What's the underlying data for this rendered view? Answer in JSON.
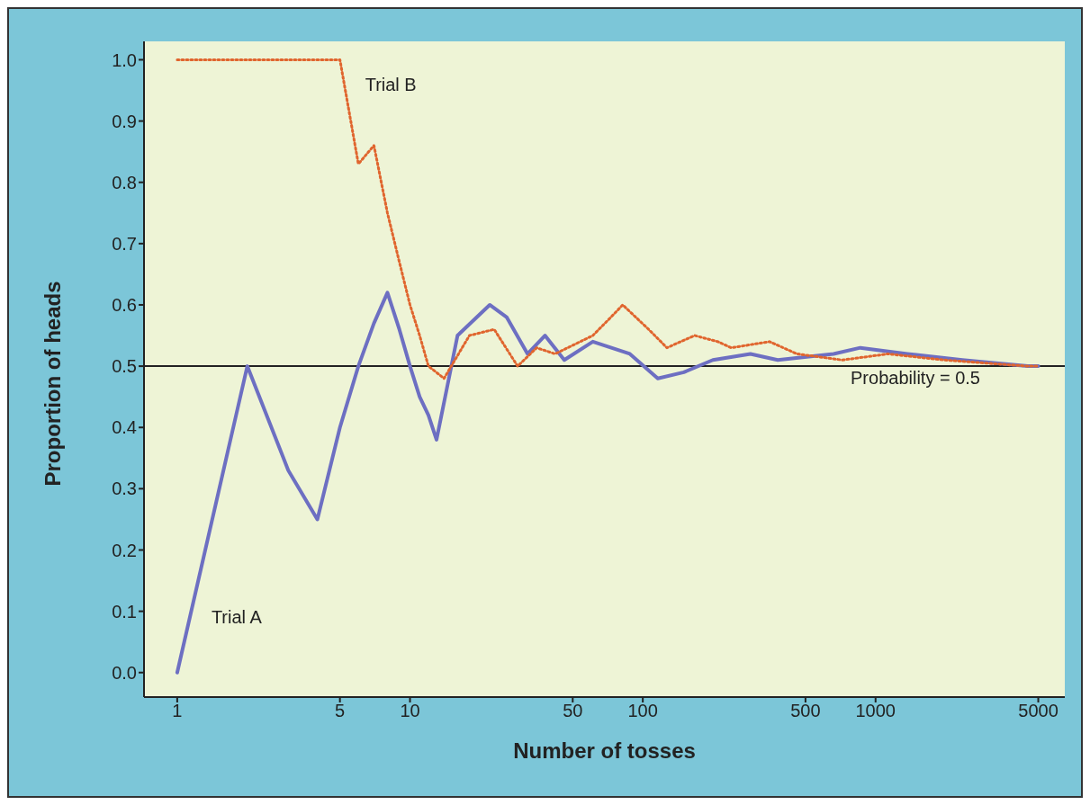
{
  "chart_data": {
    "type": "line",
    "xlabel": "Number of tosses",
    "ylabel": "Proportion of heads",
    "log": "x",
    "xlim": [
      0.72,
      6500
    ],
    "xticks": [
      1,
      5,
      10,
      50,
      100,
      500,
      1000,
      5000
    ],
    "ylim": [
      -0.04,
      1.03
    ],
    "yticks": [
      {
        "value": 0,
        "label": "0.0"
      },
      {
        "value": 0.1,
        "label": "0.1"
      },
      {
        "value": 0.2,
        "label": "0.2"
      },
      {
        "value": 0.3,
        "label": "0.3"
      },
      {
        "value": 0.4,
        "label": "0.4"
      },
      {
        "value": 0.5,
        "label": "0.5"
      },
      {
        "value": 0.6,
        "label": "0.6"
      },
      {
        "value": 0.7,
        "label": "0.7"
      },
      {
        "value": 0.8,
        "label": "0.8"
      },
      {
        "value": 0.9,
        "label": "0.9"
      },
      {
        "value": 1,
        "label": "1.0"
      }
    ],
    "grid": false,
    "marker": "none",
    "series": [
      {
        "name": "Trial A",
        "color": "#6d6fc2",
        "line_style": "solid",
        "x": [
          1,
          2,
          3,
          4,
          5,
          6,
          7,
          8,
          9,
          10,
          11,
          12,
          13,
          16,
          22,
          26,
          32,
          38,
          46,
          61,
          88,
          116,
          150,
          200,
          290,
          380,
          660,
          860,
          1370,
          2360,
          4500,
          5000
        ],
        "values": [
          0,
          0.5,
          0.33,
          0.25,
          0.4,
          0.5,
          0.57,
          0.62,
          0.56,
          0.5,
          0.45,
          0.42,
          0.38,
          0.55,
          0.6,
          0.58,
          0.52,
          0.55,
          0.51,
          0.54,
          0.52,
          0.48,
          0.49,
          0.51,
          0.52,
          0.51,
          0.52,
          0.53,
          0.52,
          0.51,
          0.5,
          0.5
        ]
      },
      {
        "name": "Trial B",
        "color": "#e0652e",
        "line_style": "dotted",
        "x": [
          1,
          2,
          3,
          4,
          5,
          6,
          7,
          8,
          9,
          10,
          11,
          12,
          14,
          18,
          23,
          29,
          35,
          42,
          61,
          73,
          82,
          106,
          127,
          167,
          210,
          240,
          350,
          460,
          720,
          1130,
          1970,
          4500,
          5000
        ],
        "values": [
          1,
          1,
          1,
          1,
          1,
          0.83,
          0.86,
          0.75,
          0.67,
          0.6,
          0.55,
          0.5,
          0.48,
          0.55,
          0.56,
          0.5,
          0.53,
          0.52,
          0.55,
          0.58,
          0.6,
          0.56,
          0.53,
          0.55,
          0.54,
          0.53,
          0.54,
          0.52,
          0.51,
          0.52,
          0.51,
          0.5,
          0.5
        ]
      }
    ],
    "ref_lines": [
      {
        "axis": "y",
        "value": 0.5,
        "label": "Probability = 0.5",
        "color": "#222222"
      }
    ]
  }
}
